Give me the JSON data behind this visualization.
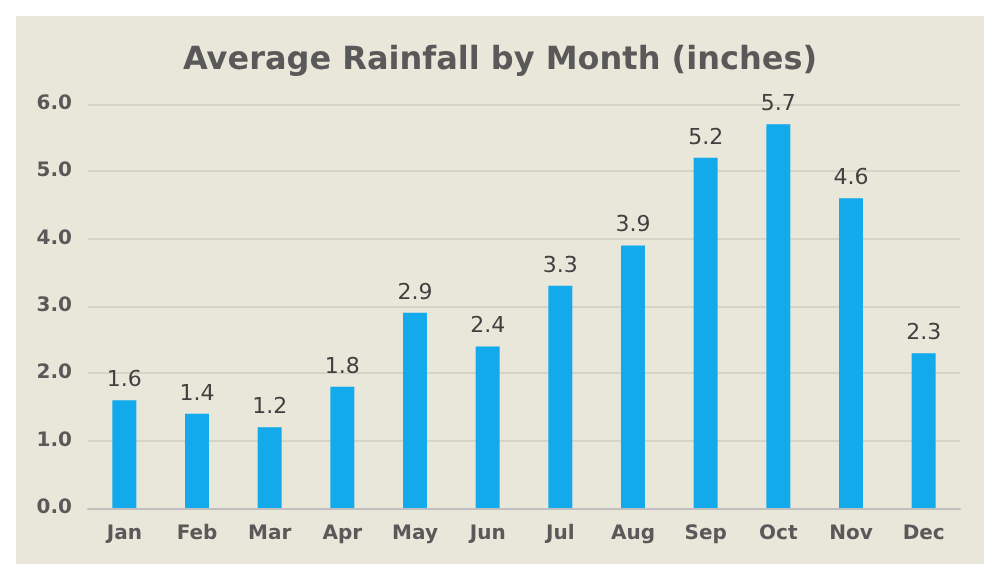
{
  "chart_data": {
    "type": "bar",
    "title": "Average Rainfall by Month (inches)",
    "categories": [
      "Jan",
      "Feb",
      "Mar",
      "Apr",
      "May",
      "Jun",
      "Jul",
      "Aug",
      "Sep",
      "Oct",
      "Nov",
      "Dec"
    ],
    "values": [
      1.6,
      1.4,
      1.2,
      1.8,
      2.9,
      2.4,
      3.3,
      3.9,
      5.2,
      5.7,
      4.6,
      2.3
    ],
    "color": "#12aaeb",
    "ylim": [
      0,
      6
    ],
    "yticks": [
      {
        "value": 0,
        "label": "0.0"
      },
      {
        "value": 1,
        "label": "1.0"
      },
      {
        "value": 2,
        "label": "2.0"
      },
      {
        "value": 3,
        "label": "3.0"
      },
      {
        "value": 4,
        "label": "4.0"
      },
      {
        "value": 5,
        "label": "5.0"
      },
      {
        "value": 6,
        "label": "6.0"
      }
    ],
    "grid": "y",
    "data_labels": true
  }
}
